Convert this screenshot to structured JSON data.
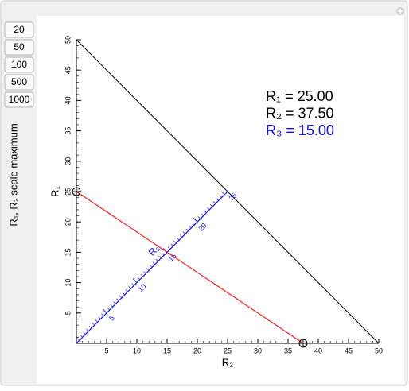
{
  "controls": {
    "buttons": [
      "20",
      "50",
      "100",
      "500",
      "1000"
    ],
    "label": "R₁, R₂ scale maximum"
  },
  "chart_data": {
    "type": "nomogram",
    "xlabel": "R₂",
    "ylabel": "R₁",
    "r3_axis_label": "R₃",
    "xlim": [
      0,
      50
    ],
    "ylim": [
      0,
      50
    ],
    "r3lim": [
      0,
      25
    ],
    "xticks": [
      5,
      10,
      15,
      20,
      25,
      30,
      35,
      40,
      45,
      50
    ],
    "yticks": [
      5,
      10,
      15,
      20,
      25,
      30,
      35,
      40,
      45,
      50
    ],
    "r3ticks": [
      5,
      10,
      15,
      20,
      25
    ],
    "minor_tick_step": 1,
    "r3_minor_tick_step": 0.5,
    "readouts": [
      {
        "value": 25,
        "label": "R₁ = 25.00",
        "color": "#000000"
      },
      {
        "value": 37.5,
        "label": "R₂ = 37.50",
        "color": "#000000"
      },
      {
        "value": 15,
        "label": "R₃ = 15.00",
        "color": "#1010ff"
      }
    ],
    "line_color": "#ff2020",
    "r3_color": "#1010ff"
  }
}
